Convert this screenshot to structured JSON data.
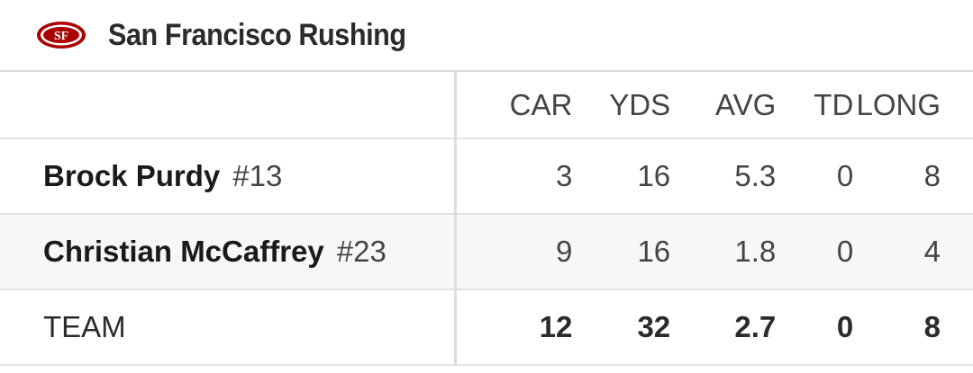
{
  "header": {
    "title": "San Francisco Rushing",
    "logo_icon": "49ers-logo-icon",
    "brand_color": "#aa0000",
    "brand_accent": "#b3995d"
  },
  "table": {
    "columns": [
      "CAR",
      "YDS",
      "AVG",
      "TD",
      "LONG"
    ],
    "rows": [
      {
        "name": "Brock Purdy",
        "jersey": "#13",
        "car": "3",
        "yds": "16",
        "avg": "5.3",
        "td": "0",
        "long": "8"
      },
      {
        "name": "Christian McCaffrey",
        "jersey": "#23",
        "car": "9",
        "yds": "16",
        "avg": "1.8",
        "td": "0",
        "long": "4"
      }
    ],
    "team": {
      "label": "TEAM",
      "car": "12",
      "yds": "32",
      "avg": "2.7",
      "td": "0",
      "long": "8"
    }
  }
}
